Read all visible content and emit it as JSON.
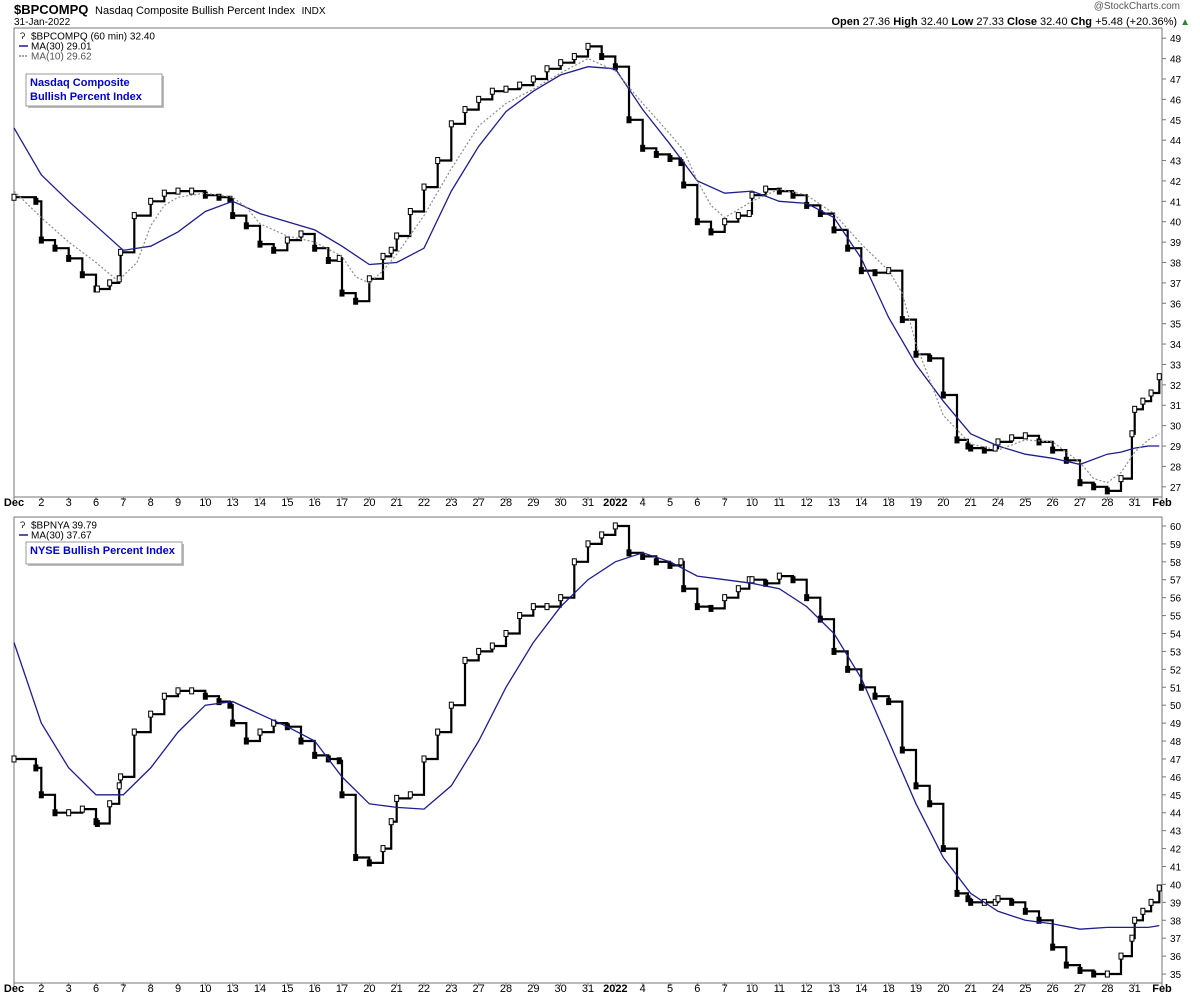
{
  "header": {
    "symbol": "$BPCOMPQ",
    "name": "Nasdaq Composite Bullish Percent Index",
    "exchange": "INDX",
    "date": "31-Jan-2022",
    "watermark": "@StockCharts.com",
    "quote": {
      "open_label": "Open",
      "open": "27.36",
      "high_label": "High",
      "high": "32.40",
      "low_label": "Low",
      "low": "27.33",
      "close_label": "Close",
      "close": "32.40",
      "chg_label": "Chg",
      "chg": "+5.48 (+20.36%)"
    }
  },
  "colors": {
    "ma30": "#1e1e8c",
    "ma10": "#8c8c8c",
    "candle": "#000000",
    "accent_text": "#0000cc",
    "up_arrow": "#2a8a2a"
  },
  "x_labels": [
    "Dec",
    "2",
    "3",
    "6",
    "7",
    "8",
    "9",
    "10",
    "13",
    "14",
    "15",
    "16",
    "17",
    "20",
    "21",
    "22",
    "23",
    "27",
    "28",
    "29",
    "30",
    "31",
    "2022",
    "4",
    "5",
    "6",
    "7",
    "10",
    "11",
    "12",
    "13",
    "14",
    "18",
    "19",
    "20",
    "21",
    "24",
    "25",
    "26",
    "27",
    "28",
    "31",
    "Feb"
  ],
  "chart_data": [
    {
      "type": "line",
      "title": "Nasdaq Composite Bullish Percent Index",
      "series_label": "$BPCOMPQ (60 min) 32.40",
      "ylim": [
        26.5,
        49.5
      ],
      "y_ticks": [
        27,
        28,
        29,
        30,
        31,
        32,
        33,
        34,
        35,
        36,
        37,
        38,
        39,
        40,
        41,
        42,
        43,
        44,
        45,
        46,
        47,
        48,
        49
      ],
      "legend": [
        {
          "label": "$BPCOMPQ (60 min) 32.40",
          "style": "candle"
        },
        {
          "label": "MA(30) 29.01",
          "style": "ma30"
        },
        {
          "label": "MA(10) 29.62",
          "style": "ma10"
        }
      ],
      "series": [
        {
          "name": "$BPCOMPQ",
          "x": [
            0,
            0.8,
            1.0,
            1.5,
            2.0,
            2.5,
            3.0,
            3.05,
            3.5,
            3.85,
            3.9,
            4.4,
            5.0,
            5.5,
            6.0,
            6.5,
            7.0,
            7.5,
            7.9,
            8.0,
            8.5,
            9.0,
            9.5,
            10.0,
            10.5,
            11.0,
            11.5,
            11.9,
            12.0,
            12.5,
            13.0,
            13.5,
            13.8,
            14.0,
            14.5,
            15.0,
            15.5,
            16.0,
            16.5,
            17.0,
            17.5,
            18.0,
            18.5,
            19.0,
            19.5,
            20.0,
            20.5,
            21.0,
            21.5,
            22.0,
            22.5,
            23.0,
            23.5,
            24.0,
            24.4,
            24.5,
            25.0,
            25.5,
            26.0,
            26.5,
            26.9,
            27.0,
            27.5,
            28.0,
            28.5,
            29.0,
            29.5,
            30.0,
            30.5,
            31.0,
            31.5,
            32.0,
            32.5,
            33.0,
            33.5,
            34.0,
            34.5,
            34.9,
            35.0,
            35.5,
            35.9,
            36.0,
            36.5,
            37.0,
            37.5,
            38.0,
            38.5,
            39.0,
            39.5,
            40.0,
            40.5,
            40.9,
            41.0,
            41.3,
            41.6,
            41.9
          ],
          "values": [
            41.2,
            41.0,
            39.1,
            38.7,
            38.2,
            37.4,
            36.7,
            36.7,
            37.0,
            37.2,
            38.5,
            40.3,
            41.0,
            41.4,
            41.5,
            41.5,
            41.3,
            41.2,
            41.1,
            40.3,
            39.8,
            38.9,
            38.6,
            39.1,
            39.4,
            38.7,
            38.1,
            38.2,
            36.5,
            36.1,
            37.2,
            38.3,
            38.6,
            39.3,
            40.5,
            41.7,
            43.0,
            44.8,
            45.5,
            46.0,
            46.4,
            46.5,
            46.7,
            47.0,
            47.5,
            47.8,
            48.1,
            48.6,
            48.1,
            47.6,
            45.0,
            43.6,
            43.3,
            43.1,
            42.9,
            41.8,
            40.0,
            39.5,
            40.0,
            40.3,
            40.4,
            41.3,
            41.6,
            41.5,
            41.3,
            40.8,
            40.4,
            39.6,
            38.7,
            37.6,
            37.5,
            37.6,
            35.2,
            33.5,
            33.3,
            31.5,
            29.3,
            29.0,
            28.9,
            28.8,
            28.9,
            29.2,
            29.4,
            29.5,
            29.2,
            28.8,
            28.3,
            27.2,
            27.0,
            26.8,
            27.4,
            29.6,
            30.8,
            31.2,
            31.6,
            32.4
          ]
        },
        {
          "name": "MA(30)",
          "x": [
            0,
            1,
            2,
            3,
            4,
            5,
            6,
            7,
            8,
            9,
            10,
            11,
            12,
            13,
            14,
            15,
            16,
            17,
            18,
            19,
            20,
            21,
            22,
            23,
            24,
            25,
            26,
            27,
            28,
            29,
            30,
            31,
            32,
            33,
            34,
            35,
            36,
            37,
            38,
            39,
            40,
            40.5,
            41,
            41.5,
            41.9
          ],
          "values": [
            44.6,
            42.3,
            41.0,
            39.8,
            38.6,
            38.8,
            39.5,
            40.5,
            41.0,
            40.4,
            40.0,
            39.6,
            38.8,
            37.9,
            38.0,
            38.7,
            41.5,
            43.7,
            45.4,
            46.4,
            47.2,
            47.6,
            47.5,
            45.5,
            43.8,
            42.0,
            41.4,
            41.5,
            41.0,
            40.9,
            40.2,
            38.2,
            35.3,
            33.0,
            31.2,
            29.6,
            29.0,
            28.6,
            28.4,
            28.1,
            28.6,
            28.7,
            28.9,
            29.0,
            29.0
          ]
        },
        {
          "name": "MA(10)",
          "x": [
            0,
            1,
            2,
            3,
            3.8,
            4.5,
            5,
            5.5,
            6,
            7,
            8,
            8.5,
            9,
            10,
            11,
            12,
            12.5,
            13,
            13.5,
            14,
            15,
            16,
            17,
            18,
            19,
            20,
            21,
            22,
            23,
            24,
            24.5,
            25,
            25.5,
            26,
            27,
            28,
            29,
            30,
            31,
            32,
            32.5,
            33,
            34,
            35,
            36,
            37,
            38,
            39,
            39.5,
            40,
            40.5,
            41,
            41.5,
            41.9
          ],
          "values": [
            41.5,
            40.2,
            39.0,
            38.0,
            37.1,
            38.0,
            39.8,
            40.8,
            41.2,
            41.4,
            41.2,
            40.7,
            39.9,
            39.3,
            39.0,
            38.3,
            37.3,
            37.0,
            37.6,
            38.4,
            40.3,
            42.6,
            44.7,
            45.8,
            46.5,
            47.3,
            48.0,
            47.4,
            45.8,
            44.3,
            43.5,
            42.0,
            40.8,
            40.2,
            41.0,
            41.6,
            41.3,
            40.4,
            38.9,
            37.6,
            36.5,
            34.0,
            30.5,
            29.1,
            28.8,
            29.3,
            29.2,
            28.2,
            27.4,
            27.2,
            27.7,
            28.7,
            29.3,
            29.6
          ]
        }
      ]
    },
    {
      "type": "line",
      "title": "NYSE Bullish Percent Index",
      "series_label": "$BPNYA 39.79",
      "ylim": [
        34.5,
        60.5
      ],
      "y_ticks": [
        35,
        36,
        37,
        38,
        39,
        40,
        41,
        42,
        43,
        44,
        45,
        46,
        47,
        48,
        49,
        50,
        51,
        52,
        53,
        54,
        55,
        56,
        57,
        58,
        59,
        60
      ],
      "legend": [
        {
          "label": "$BPNYA 39.79",
          "style": "candle"
        },
        {
          "label": "MA(30) 37.67",
          "style": "ma30"
        }
      ],
      "series": [
        {
          "name": "$BPNYA",
          "x": [
            0,
            0.8,
            1.0,
            1.5,
            2.0,
            2.5,
            3.0,
            3.05,
            3.5,
            3.85,
            3.9,
            4.4,
            5.0,
            5.5,
            6.0,
            6.5,
            7.0,
            7.5,
            7.9,
            8.0,
            8.5,
            9.0,
            9.5,
            10.0,
            10.5,
            11.0,
            11.5,
            11.9,
            12.0,
            12.5,
            13.0,
            13.5,
            13.8,
            14.0,
            14.5,
            15.0,
            15.5,
            16.0,
            16.5,
            17.0,
            17.5,
            18.0,
            18.5,
            19.0,
            19.5,
            20.0,
            20.5,
            21.0,
            21.5,
            22.0,
            22.5,
            23.0,
            23.5,
            24.0,
            24.4,
            24.5,
            25.0,
            25.5,
            26.0,
            26.5,
            26.9,
            27.0,
            27.5,
            28.0,
            28.5,
            29.0,
            29.5,
            30.0,
            30.5,
            31.0,
            31.5,
            32.0,
            32.5,
            33.0,
            33.5,
            34.0,
            34.5,
            34.9,
            35.0,
            35.5,
            35.9,
            36.0,
            36.5,
            37.0,
            37.5,
            38.0,
            38.5,
            39.0,
            39.5,
            40.0,
            40.5,
            40.9,
            41.0,
            41.3,
            41.6,
            41.9
          ],
          "values": [
            47.0,
            46.5,
            45.0,
            44.0,
            44.0,
            44.2,
            43.5,
            43.4,
            44.5,
            45.5,
            46.0,
            48.5,
            49.5,
            50.5,
            50.8,
            50.8,
            50.5,
            50.2,
            50.0,
            49.0,
            48.0,
            48.5,
            49.0,
            48.8,
            48.0,
            47.2,
            47.0,
            46.9,
            45.0,
            41.5,
            41.2,
            42.0,
            43.5,
            44.8,
            45.0,
            47.0,
            48.5,
            50.0,
            52.5,
            53.0,
            53.3,
            54.0,
            55.0,
            55.5,
            55.5,
            56.0,
            58.0,
            59.0,
            59.5,
            60.0,
            58.5,
            58.3,
            58.0,
            57.8,
            58.0,
            56.5,
            55.5,
            55.4,
            56.0,
            56.5,
            57.0,
            57.0,
            56.8,
            57.2,
            57.0,
            56.0,
            54.8,
            53.0,
            52.0,
            51.0,
            50.5,
            50.2,
            47.5,
            45.5,
            44.5,
            42.0,
            39.5,
            39.2,
            39.0,
            39.0,
            39.0,
            39.2,
            39.0,
            38.5,
            38.0,
            36.5,
            35.5,
            35.2,
            35.0,
            35.0,
            36.0,
            37.0,
            38.0,
            38.5,
            39.0,
            39.8
          ]
        },
        {
          "name": "MA(30)",
          "x": [
            0,
            1,
            2,
            3,
            4,
            5,
            6,
            7,
            8,
            9,
            10,
            11,
            12,
            13,
            14,
            15,
            16,
            17,
            18,
            19,
            20,
            21,
            22,
            23,
            24,
            25,
            26,
            27,
            28,
            29,
            30,
            31,
            32,
            33,
            34,
            35,
            36,
            37,
            38,
            39,
            40,
            40.5,
            41,
            41.5,
            41.9
          ],
          "values": [
            53.5,
            49.0,
            46.5,
            45.0,
            45.0,
            46.5,
            48.5,
            50.0,
            50.2,
            49.5,
            48.8,
            48.0,
            46.0,
            44.5,
            44.3,
            44.2,
            45.5,
            48.0,
            51.0,
            53.5,
            55.5,
            57.0,
            58.0,
            58.5,
            58.0,
            57.2,
            57.0,
            56.8,
            56.5,
            55.5,
            54.0,
            51.5,
            48.0,
            44.5,
            41.5,
            39.5,
            38.5,
            38.0,
            37.8,
            37.5,
            37.6,
            37.6,
            37.6,
            37.6,
            37.7
          ]
        }
      ]
    }
  ],
  "panel_labels": [
    "Nasdaq Composite\nBullish Percent Index",
    "NYSE Bullish Percent Index"
  ]
}
